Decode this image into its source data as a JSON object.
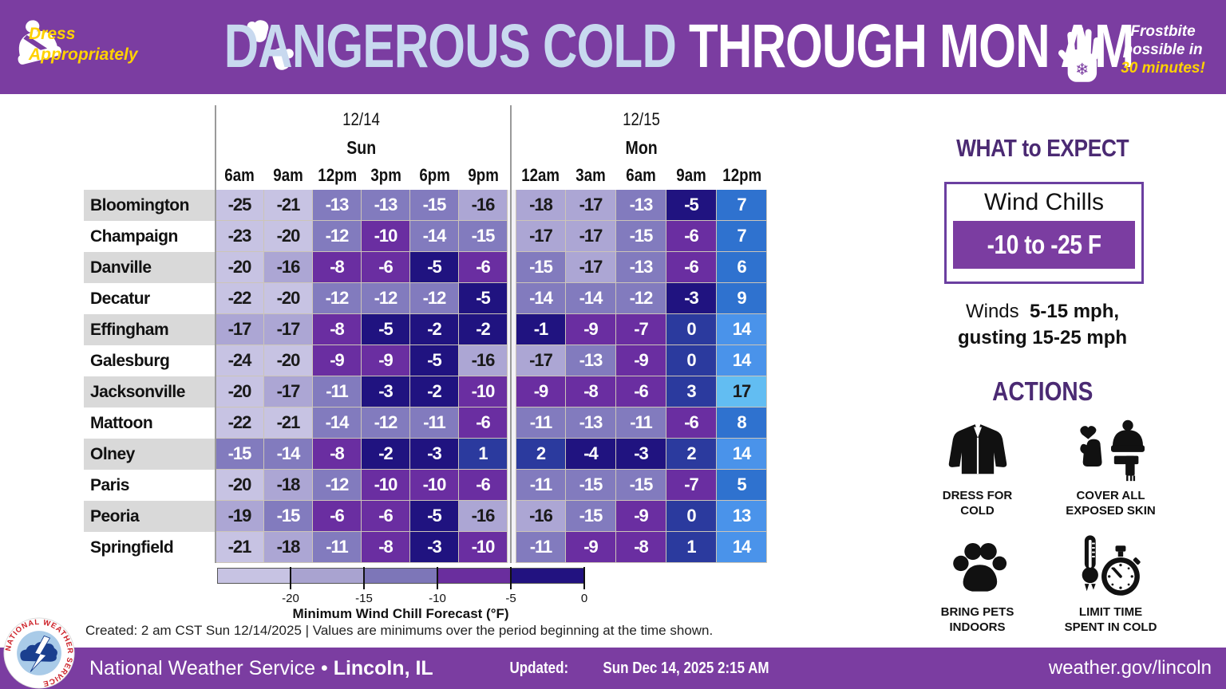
{
  "header": {
    "dress_line1": "Dress",
    "dress_line2": "Appropriately",
    "title_cold": "DANGEROUS COLD",
    "title_rest": " THROUGH MON AM",
    "frost_line1": "Frostbite",
    "frost_line2": "possible in",
    "frost_line3": "30 minutes!"
  },
  "chart_data": {
    "type": "heatmap",
    "title": "DANGEROUS COLD THROUGH MON AM",
    "value_unit": "F",
    "column_groups": [
      {
        "date": "12/14",
        "day": "Sun",
        "times": [
          "6am",
          "9am",
          "12pm",
          "3pm",
          "6pm",
          "9pm"
        ]
      },
      {
        "date": "12/15",
        "day": "Mon",
        "times": [
          "12am",
          "3am",
          "6am",
          "9am",
          "12pm"
        ]
      }
    ],
    "rows": [
      {
        "city": "Bloomington",
        "values": [
          -25,
          -21,
          -13,
          -13,
          -15,
          -16,
          -18,
          -17,
          -13,
          -5,
          7
        ]
      },
      {
        "city": "Champaign",
        "values": [
          -23,
          -20,
          -12,
          -10,
          -14,
          -15,
          -17,
          -17,
          -15,
          -6,
          7
        ]
      },
      {
        "city": "Danville",
        "values": [
          -20,
          -16,
          -8,
          -6,
          -5,
          -6,
          -15,
          -17,
          -13,
          -6,
          6
        ]
      },
      {
        "city": "Decatur",
        "values": [
          -22,
          -20,
          -12,
          -12,
          -12,
          -5,
          -14,
          -14,
          -12,
          -3,
          9
        ]
      },
      {
        "city": "Effingham",
        "values": [
          -17,
          -17,
          -8,
          -5,
          -2,
          -2,
          -1,
          -9,
          -7,
          0,
          14
        ]
      },
      {
        "city": "Galesburg",
        "values": [
          -24,
          -20,
          -9,
          -9,
          -5,
          -16,
          -17,
          -13,
          -9,
          0,
          14
        ]
      },
      {
        "city": "Jacksonville",
        "values": [
          -20,
          -17,
          -11,
          -3,
          -2,
          -10,
          -9,
          -8,
          -6,
          3,
          17
        ]
      },
      {
        "city": "Mattoon",
        "values": [
          -22,
          -21,
          -14,
          -12,
          -11,
          -6,
          -11,
          -13,
          -11,
          -6,
          8
        ]
      },
      {
        "city": "Olney",
        "values": [
          -15,
          -14,
          -8,
          -2,
          -3,
          1,
          2,
          -4,
          -3,
          2,
          14
        ]
      },
      {
        "city": "Paris",
        "values": [
          -20,
          -18,
          -12,
          -10,
          -10,
          -6,
          -11,
          -15,
          -15,
          -7,
          5
        ]
      },
      {
        "city": "Peoria",
        "values": [
          -19,
          -15,
          -6,
          -6,
          -5,
          -16,
          -16,
          -15,
          -9,
          0,
          13
        ]
      },
      {
        "city": "Springfield",
        "values": [
          -21,
          -18,
          -11,
          -8,
          -3,
          -10,
          -11,
          -9,
          -8,
          1,
          14
        ]
      }
    ],
    "cell_color_bins": [
      {
        "max": -20,
        "bg": "#c7c3e3",
        "fg": "#1a1a1a"
      },
      {
        "max": -16,
        "bg": "#aca6d4",
        "fg": "#1a1a1a"
      },
      {
        "max": -11,
        "bg": "#827bbe",
        "fg": "#ffffff"
      },
      {
        "max": -6,
        "bg": "#6a2ea1",
        "fg": "#ffffff"
      },
      {
        "max": -1,
        "bg": "#201380",
        "fg": "#ffffff"
      },
      {
        "max": 4,
        "bg": "#2b3a9e",
        "fg": "#ffffff"
      },
      {
        "max": 9,
        "bg": "#2f72cf",
        "fg": "#ffffff"
      },
      {
        "max": 16,
        "bg": "#4a93ea",
        "fg": "#ffffff"
      },
      {
        "max": 999,
        "bg": "#62bdf2",
        "fg": "#1a1a1a"
      }
    ],
    "colorbar": {
      "label": "Minimum Wind Chill Forecast (°F)",
      "range": [
        -25,
        0
      ],
      "tick_values": [
        "-20",
        "-15",
        "-10",
        "-5",
        "0"
      ],
      "segment_colors": [
        "#c7c3e3",
        "#a9a3d0",
        "#7d76b8",
        "#6a2e9e",
        "#221280"
      ]
    },
    "caption": "Created: 2 am CST Sun 12/14/2025  |  Values are minimums over the period beginning at the time shown."
  },
  "what_to_expect": {
    "heading": "WHAT to EXPECT",
    "box_title": "Wind Chills",
    "box_value": "-10 to -25 F",
    "winds_label": "Winds",
    "winds_speed": "5-15 mph,",
    "winds_line2": "gusting 15-25 mph"
  },
  "actions": {
    "heading": "ACTIONS",
    "items": [
      {
        "icon": "jacket-icon",
        "line1": "DRESS FOR",
        "line2": "COLD"
      },
      {
        "icon": "winter-gear-icon",
        "line1": "COVER ALL",
        "line2": "EXPOSED SKIN"
      },
      {
        "icon": "paw-icon",
        "line1": "BRING PETS",
        "line2": "INDOORS"
      },
      {
        "icon": "thermometer-stopwatch-icon",
        "line1": "LIMIT TIME",
        "line2": "SPENT IN COLD"
      }
    ]
  },
  "footer": {
    "agency": "National Weather Service",
    "separator": "•",
    "office": "Lincoln, IL",
    "updated_label": "Updated:",
    "updated_value": "Sun Dec 14, 2025 2:15 AM",
    "url": "weather.gov/lincoln"
  },
  "colors": {
    "brand_purple": "#7b3da1",
    "heading_purple": "#4b2a73",
    "headline_blue": "#c8d9ef",
    "accent_yellow": "#ffd200"
  }
}
